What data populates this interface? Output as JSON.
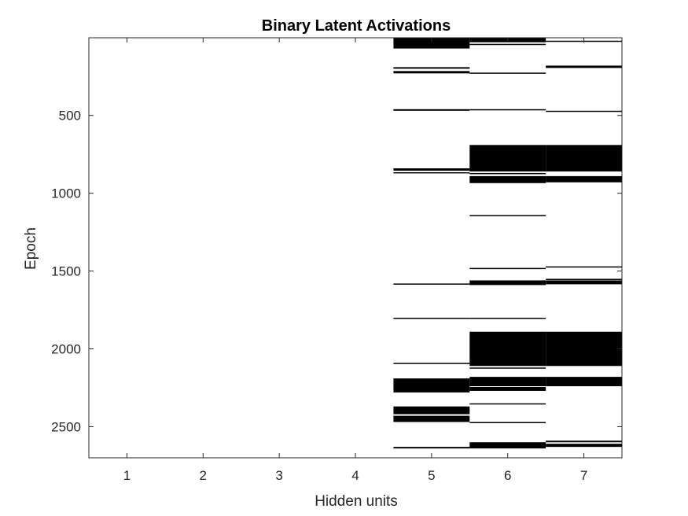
{
  "chart_data": {
    "type": "heatmap",
    "title": "Binary Latent Activations",
    "xlabel": "Hidden units",
    "ylabel": "Epoch",
    "x_categories": [
      "1",
      "2",
      "3",
      "4",
      "5",
      "6",
      "7"
    ],
    "x_ticks": [
      "1",
      "2",
      "3",
      "4",
      "5",
      "6",
      "7"
    ],
    "y_ticks": [
      500,
      1000,
      1500,
      2000,
      2500
    ],
    "ylim": [
      1,
      2700
    ],
    "y_reversed": true,
    "colors": {
      "active": "#000000",
      "inactive": "#ffffff",
      "axis": "#262626"
    },
    "units": [
      {
        "unit": 1,
        "active": []
      },
      {
        "unit": 2,
        "active": []
      },
      {
        "unit": 3,
        "active": []
      },
      {
        "unit": 4,
        "active": []
      },
      {
        "unit": 5,
        "active": [
          [
            1,
            70
          ],
          [
            190,
            200
          ],
          [
            215,
            230
          ],
          [
            460,
            470
          ],
          [
            840,
            855
          ],
          [
            865,
            870
          ],
          [
            1580,
            1585
          ],
          [
            1800,
            1805
          ],
          [
            2090,
            2095
          ],
          [
            2190,
            2280
          ],
          [
            2370,
            2420
          ],
          [
            2430,
            2470
          ],
          [
            2630,
            2640
          ]
        ]
      },
      {
        "unit": 6,
        "active": [
          [
            1,
            30
          ],
          [
            40,
            45
          ],
          [
            225,
            230
          ],
          [
            460,
            465
          ],
          [
            690,
            860
          ],
          [
            870,
            875
          ],
          [
            890,
            935
          ],
          [
            1140,
            1145
          ],
          [
            1480,
            1485
          ],
          [
            1560,
            1590
          ],
          [
            1800,
            1805
          ],
          [
            1890,
            2110
          ],
          [
            2120,
            2125
          ],
          [
            2180,
            2240
          ],
          [
            2245,
            2270
          ],
          [
            2350,
            2355
          ],
          [
            2470,
            2475
          ],
          [
            2600,
            2640
          ]
        ]
      },
      {
        "unit": 7,
        "active": [
          [
            20,
            25
          ],
          [
            180,
            195
          ],
          [
            470,
            475
          ],
          [
            690,
            860
          ],
          [
            890,
            930
          ],
          [
            1470,
            1475
          ],
          [
            1550,
            1555
          ],
          [
            1560,
            1585
          ],
          [
            1890,
            2110
          ],
          [
            2180,
            2240
          ],
          [
            2590,
            2600
          ],
          [
            2610,
            2630
          ]
        ]
      }
    ]
  }
}
